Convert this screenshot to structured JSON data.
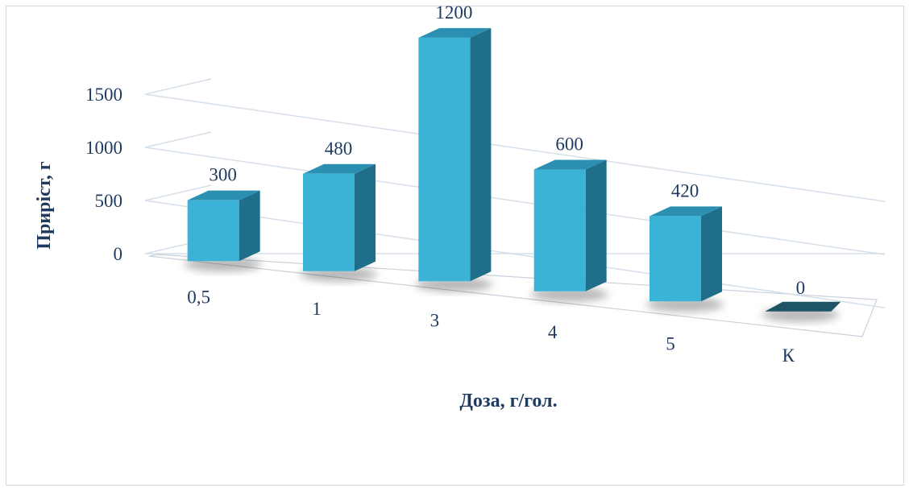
{
  "chart_data": {
    "type": "bar",
    "style": "3d-column",
    "categories": [
      "0,5",
      "1",
      "3",
      "4",
      "5",
      "К"
    ],
    "values": [
      300,
      480,
      1200,
      600,
      420,
      0
    ],
    "data_labels": [
      "300",
      "480",
      "1200",
      "600",
      "420",
      "0"
    ],
    "title": "",
    "xlabel": "Доза, г/гол.",
    "ylabel": "Приріст, г",
    "ylim": [
      0,
      1500
    ],
    "yticks": [
      0,
      500,
      1000,
      1500
    ],
    "ytick_labels": [
      "0",
      "500",
      "1000",
      "1500"
    ],
    "grid": true,
    "legend": "none",
    "colors": {
      "bar_front": "#3bb3d6",
      "bar_top": "#2a8fb0",
      "bar_side": "#1f6f8b",
      "zero_bar": "#1d5566",
      "gridline": "#d5dfe9",
      "text": "#1f3a5f"
    }
  }
}
